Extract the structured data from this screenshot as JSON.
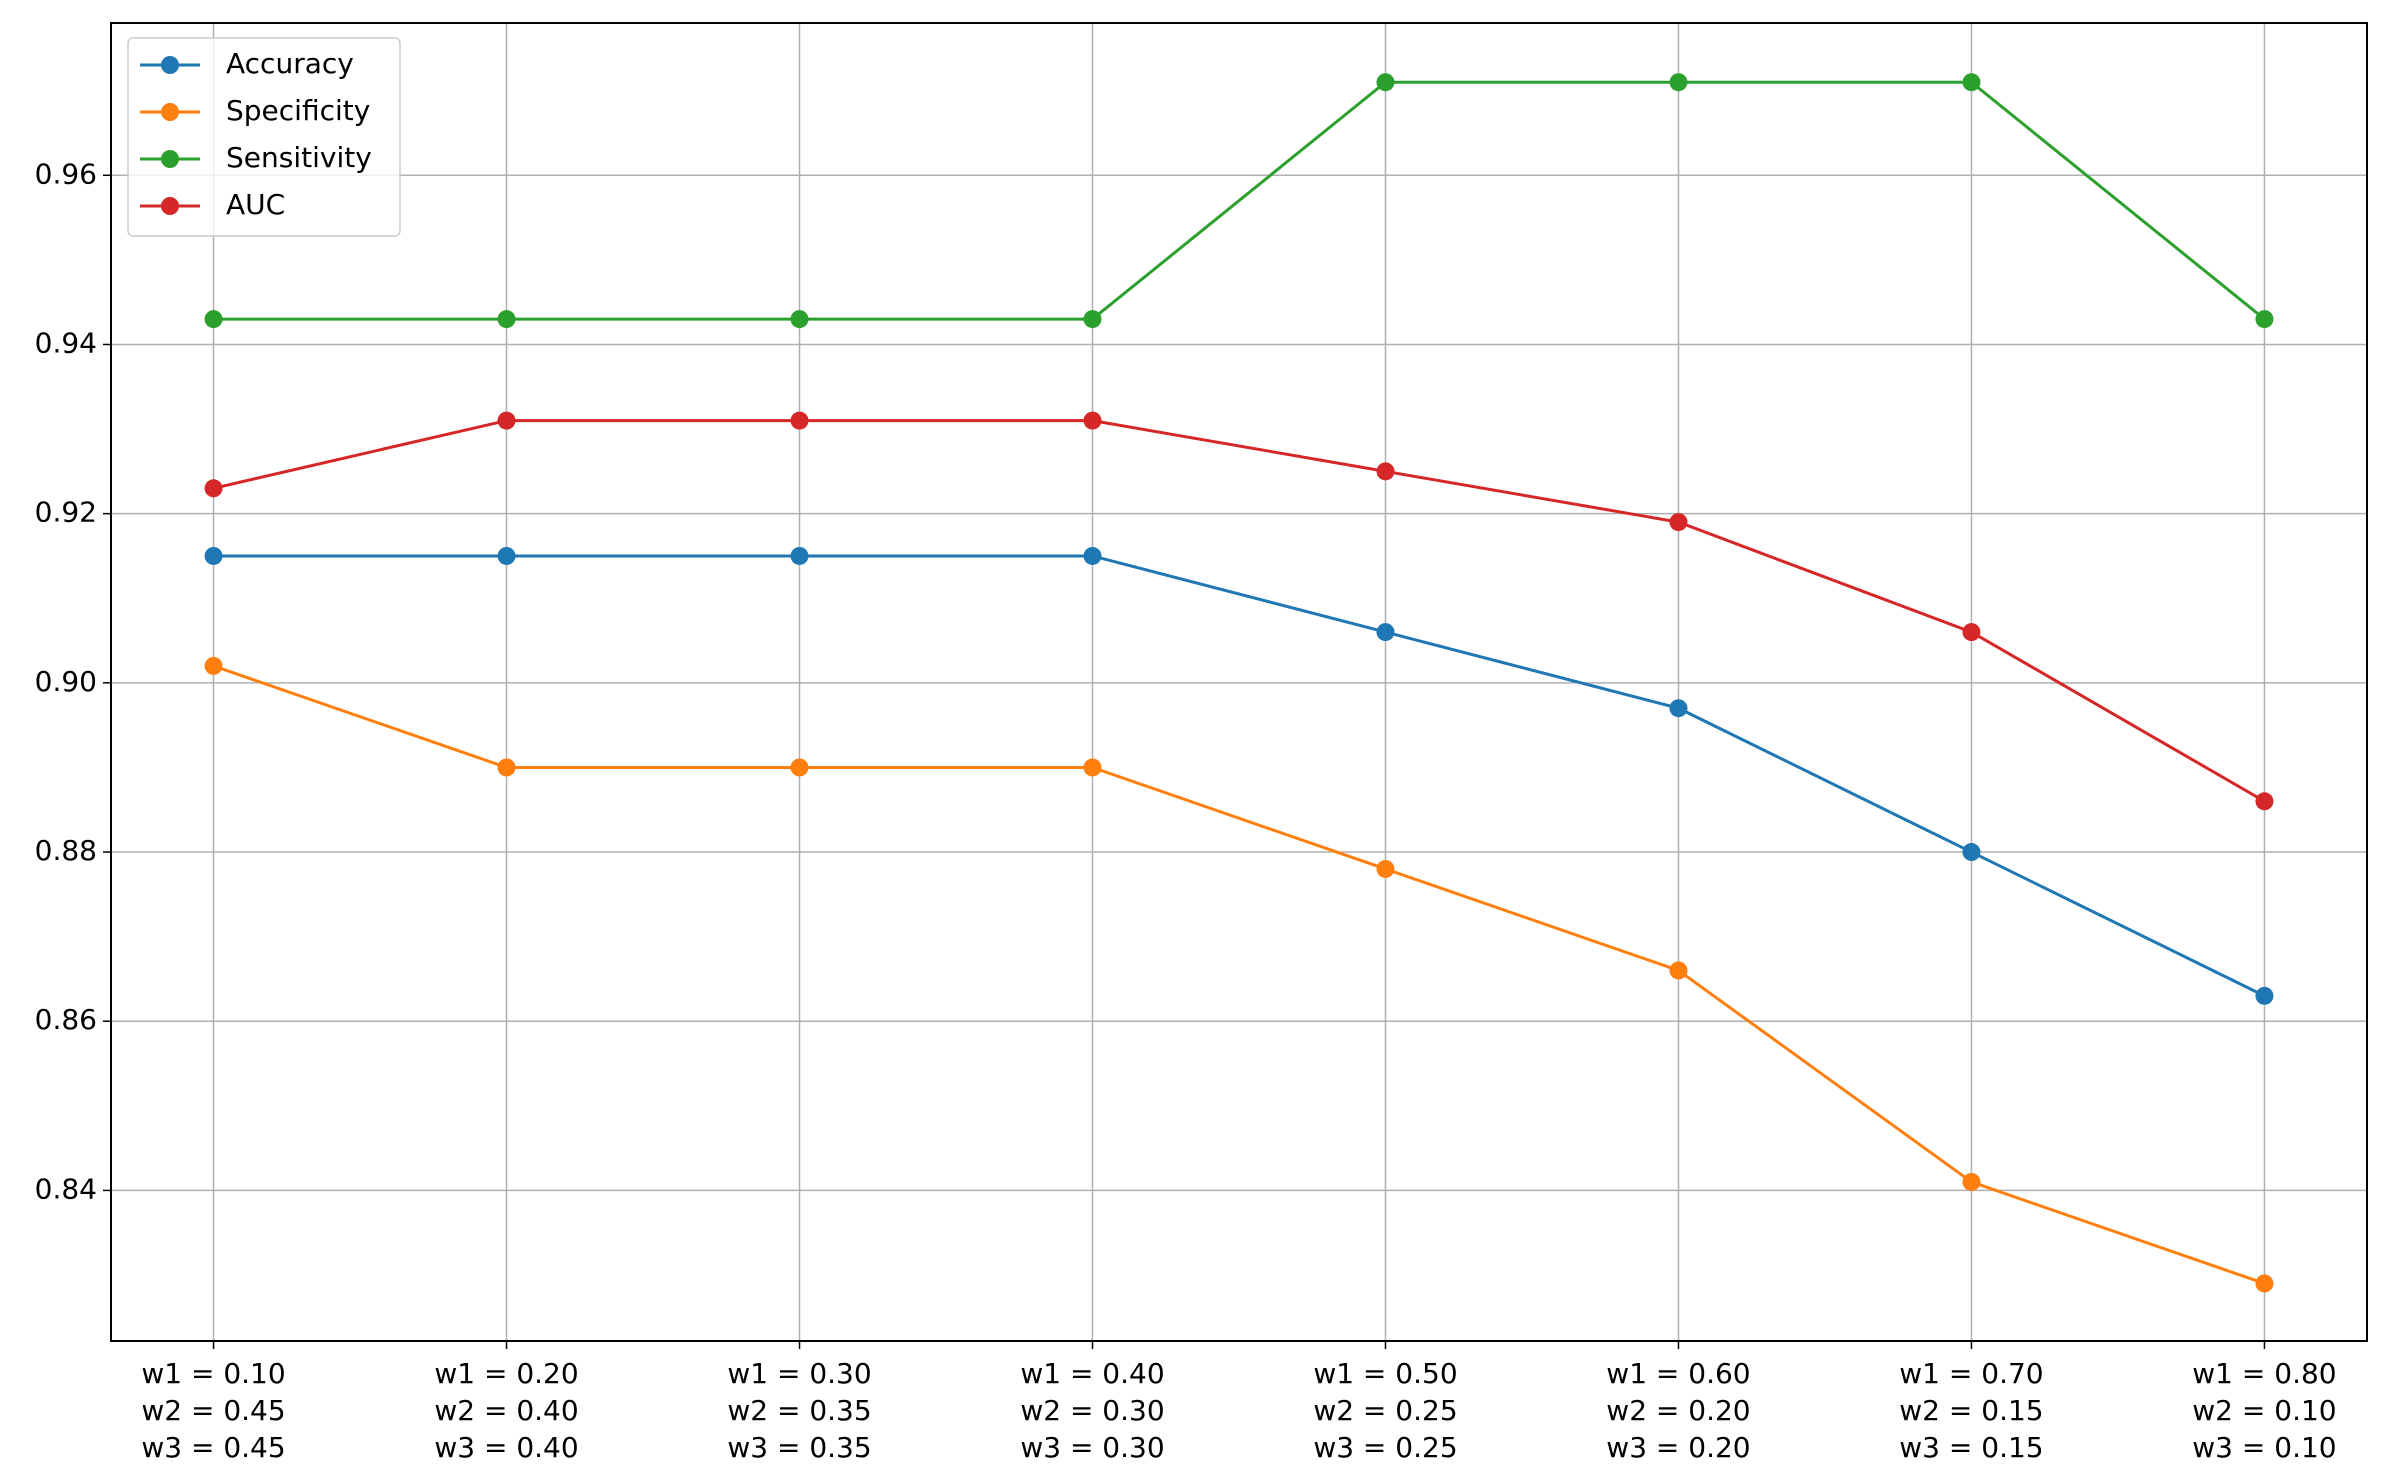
{
  "chart_data": {
    "type": "line",
    "categories": [
      "w1 = 0.10\nw2 = 0.45\nw3 = 0.45",
      "w1 = 0.20\nw2 = 0.40\nw3 = 0.40",
      "w1 = 0.30\nw2 = 0.35\nw3 = 0.35",
      "w1 = 0.40\nw2 = 0.30\nw3 = 0.30",
      "w1 = 0.50\nw2 = 0.25\nw3 = 0.25",
      "w1 = 0.60\nw2 = 0.20\nw3 = 0.20",
      "w1 = 0.70\nw2 = 0.15\nw3 = 0.15",
      "w1 = 0.80\nw2 = 0.10\nw3 = 0.10"
    ],
    "series": [
      {
        "name": "Accuracy",
        "color": "#1f77b4",
        "values": [
          0.915,
          0.915,
          0.915,
          0.915,
          0.906,
          0.897,
          0.88,
          0.863
        ]
      },
      {
        "name": "Specificity",
        "color": "#ff7f0e",
        "values": [
          0.902,
          0.89,
          0.89,
          0.89,
          0.878,
          0.866,
          0.841,
          0.829
        ]
      },
      {
        "name": "Sensitivity",
        "color": "#2ca02c",
        "values": [
          0.943,
          0.943,
          0.943,
          0.943,
          0.971,
          0.971,
          0.971,
          0.943
        ]
      },
      {
        "name": "AUC",
        "color": "#d62728",
        "values": [
          0.923,
          0.931,
          0.931,
          0.931,
          0.925,
          0.919,
          0.906,
          0.886
        ]
      }
    ],
    "ylim": [
      0.8222,
      0.978
    ],
    "yticks": [
      0.84,
      0.86,
      0.88,
      {
        "value": 0.9,
        "label": "0.90"
      },
      0.92,
      0.94,
      0.96
    ],
    "grid": true,
    "legend": "upper left"
  }
}
